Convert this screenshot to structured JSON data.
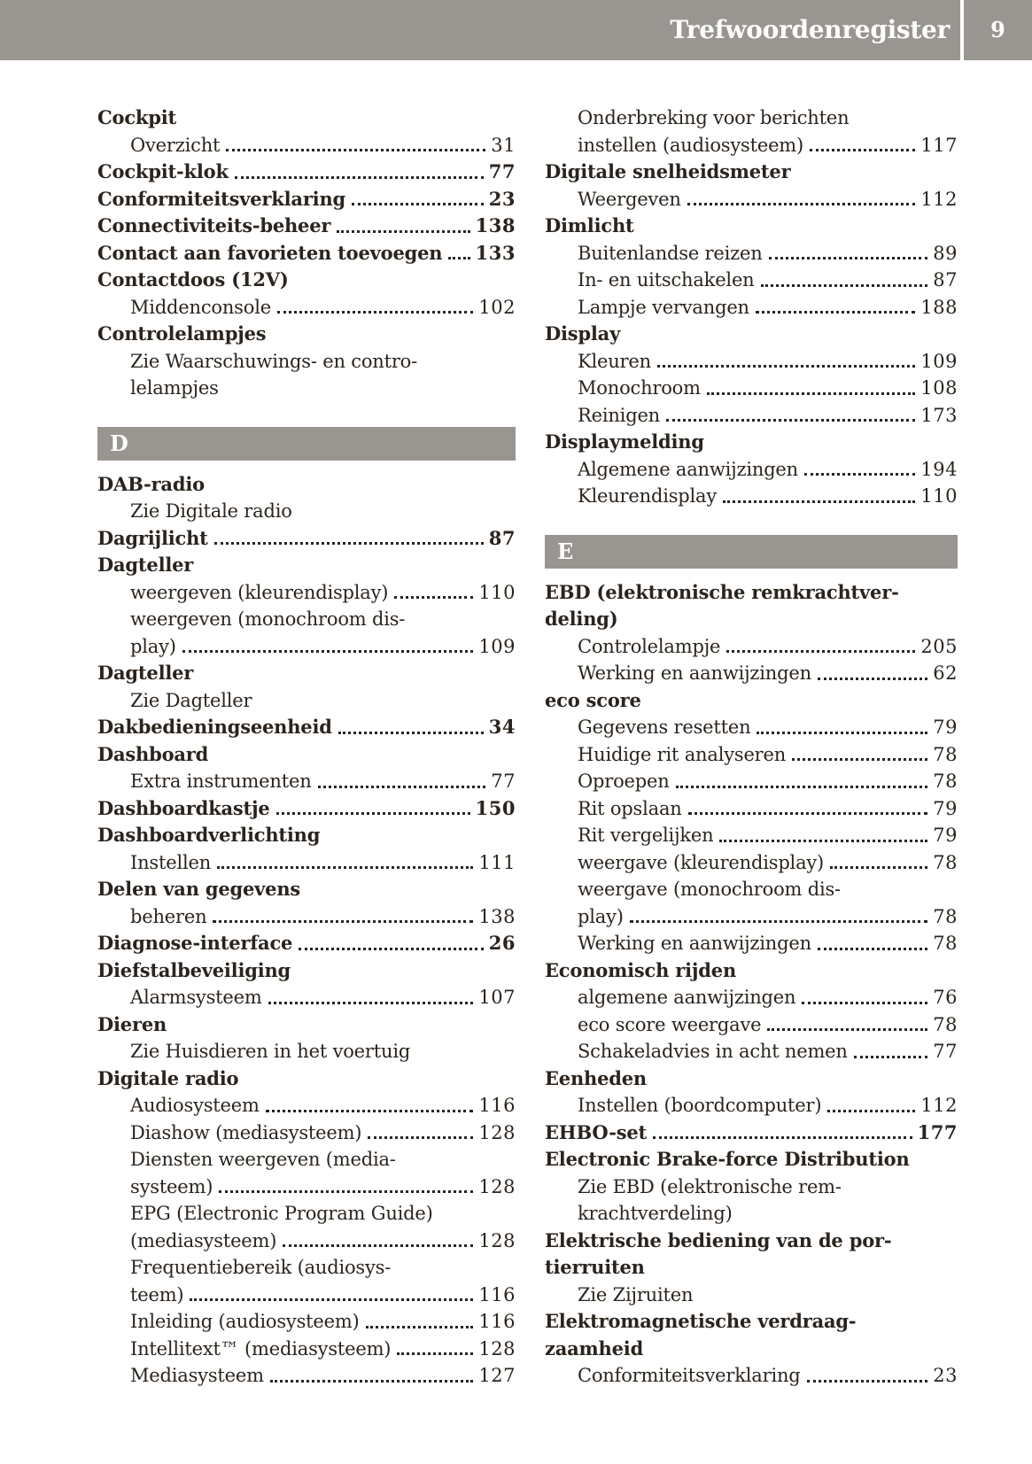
{
  "header": {
    "title": "Trefwoordenregister",
    "page_number": "9"
  },
  "colors": {
    "header_bar": "#999591",
    "section_bar": "#999591",
    "text": "#2b241e",
    "header_text": "#ffffff",
    "background": "#ffffff"
  },
  "index": {
    "columns": [
      {
        "rows": [
          {
            "s": "head",
            "t": "Cockpit",
            "p": ""
          },
          {
            "s": "sub",
            "t": "Overzicht",
            "p": "31"
          },
          {
            "s": "head",
            "t": "Cockpit-klok",
            "p": "77"
          },
          {
            "s": "head",
            "t": "Conformiteitsverklaring",
            "p": "23"
          },
          {
            "s": "head",
            "t": "Connectiviteits-beheer",
            "p": "138"
          },
          {
            "s": "head",
            "t": "Contact aan favorieten toevoegen",
            "p": "133"
          },
          {
            "s": "head",
            "t": "Contactdoos (12V)",
            "p": ""
          },
          {
            "s": "sub",
            "t": "Middenconsole",
            "p": "102"
          },
          {
            "s": "head",
            "t": "Controlelampjes",
            "p": ""
          },
          {
            "s": "sub",
            "t": "Zie Waarschuwings- en contro-",
            "p": ""
          },
          {
            "s": "sub",
            "t": "lelampjes",
            "p": ""
          },
          {
            "s": "bar",
            "t": "D"
          },
          {
            "s": "head",
            "t": "DAB-radio",
            "p": ""
          },
          {
            "s": "sub",
            "t": "Zie Digitale radio",
            "p": ""
          },
          {
            "s": "head",
            "t": "Dagrijlicht",
            "p": "87"
          },
          {
            "s": "head",
            "t": "Dagteller",
            "p": ""
          },
          {
            "s": "sub",
            "t": "weergeven (kleurendisplay)",
            "p": "110"
          },
          {
            "s": "sub",
            "t": "weergeven (monochroom dis-",
            "p": ""
          },
          {
            "s": "sub",
            "t": "play)",
            "p": "109"
          },
          {
            "s": "head",
            "t": "Dagteller",
            "p": ""
          },
          {
            "s": "sub",
            "t": "Zie Dagteller",
            "p": ""
          },
          {
            "s": "head",
            "t": "Dakbedieningseenheid",
            "p": "34"
          },
          {
            "s": "head",
            "t": "Dashboard",
            "p": ""
          },
          {
            "s": "sub",
            "t": "Extra instrumenten",
            "p": "77"
          },
          {
            "s": "head",
            "t": "Dashboardkastje",
            "p": "150"
          },
          {
            "s": "head",
            "t": "Dashboardverlichting",
            "p": ""
          },
          {
            "s": "sub",
            "t": "Instellen",
            "p": "111"
          },
          {
            "s": "head",
            "t": "Delen van gegevens",
            "p": ""
          },
          {
            "s": "sub",
            "t": "beheren",
            "p": "138"
          },
          {
            "s": "head",
            "t": "Diagnose-interface",
            "p": "26"
          },
          {
            "s": "head",
            "t": "Diefstalbeveiliging",
            "p": ""
          },
          {
            "s": "sub",
            "t": "Alarmsysteem",
            "p": "107"
          },
          {
            "s": "head",
            "t": "Dieren",
            "p": ""
          },
          {
            "s": "sub",
            "t": "Zie Huisdieren in het voertuig",
            "p": ""
          },
          {
            "s": "head",
            "t": "Digitale radio",
            "p": ""
          },
          {
            "s": "sub",
            "t": "Audiosysteem",
            "p": "116"
          },
          {
            "s": "sub",
            "t": "Diashow (mediasysteem)",
            "p": "128"
          },
          {
            "s": "sub",
            "t": "Diensten weergeven (media-",
            "p": ""
          },
          {
            "s": "sub",
            "t": "systeem)",
            "p": "128"
          },
          {
            "s": "sub",
            "t": "EPG (Electronic Program Guide)",
            "p": ""
          },
          {
            "s": "sub",
            "t": "(mediasysteem)",
            "p": "128"
          },
          {
            "s": "sub",
            "t": "Frequentiebereik (audiosys-",
            "p": ""
          },
          {
            "s": "sub",
            "t": "teem)",
            "p": "116"
          },
          {
            "s": "sub",
            "t": "Inleiding (audiosysteem)",
            "p": "116"
          },
          {
            "s": "sub",
            "t": "Intellitext™ (mediasysteem)",
            "p": "128"
          },
          {
            "s": "sub",
            "t": "Mediasysteem",
            "p": "127"
          }
        ]
      },
      {
        "rows": [
          {
            "s": "sub",
            "t": "Onderbreking voor berichten",
            "p": ""
          },
          {
            "s": "sub",
            "t": "instellen (audiosysteem)",
            "p": "117"
          },
          {
            "s": "head",
            "t": "Digitale snelheidsmeter",
            "p": ""
          },
          {
            "s": "sub",
            "t": "Weergeven",
            "p": "112"
          },
          {
            "s": "head",
            "t": "Dimlicht",
            "p": ""
          },
          {
            "s": "sub",
            "t": "Buitenlandse reizen",
            "p": "89"
          },
          {
            "s": "sub",
            "t": "In- en uitschakelen",
            "p": "87"
          },
          {
            "s": "sub",
            "t": "Lampje vervangen",
            "p": "188"
          },
          {
            "s": "head",
            "t": "Display",
            "p": ""
          },
          {
            "s": "sub",
            "t": "Kleuren",
            "p": "109"
          },
          {
            "s": "sub",
            "t": "Monochroom",
            "p": "108"
          },
          {
            "s": "sub",
            "t": "Reinigen",
            "p": "173"
          },
          {
            "s": "head",
            "t": "Displaymelding",
            "p": ""
          },
          {
            "s": "sub",
            "t": "Algemene aanwijzingen",
            "p": "194"
          },
          {
            "s": "sub",
            "t": "Kleurendisplay",
            "p": "110"
          },
          {
            "s": "bar",
            "t": "E"
          },
          {
            "s": "head",
            "t": "EBD (elektronische remkrachtver-",
            "p": ""
          },
          {
            "s": "head",
            "t": "deling)",
            "p": ""
          },
          {
            "s": "sub",
            "t": "Controlelampje",
            "p": "205"
          },
          {
            "s": "sub",
            "t": "Werking en aanwijzingen",
            "p": "62"
          },
          {
            "s": "head",
            "t": "eco score",
            "p": ""
          },
          {
            "s": "sub",
            "t": "Gegevens resetten",
            "p": "79"
          },
          {
            "s": "sub",
            "t": "Huidige rit analyseren",
            "p": "78"
          },
          {
            "s": "sub",
            "t": "Oproepen",
            "p": "78"
          },
          {
            "s": "sub",
            "t": "Rit opslaan",
            "p": "79"
          },
          {
            "s": "sub",
            "t": "Rit vergelijken",
            "p": "79"
          },
          {
            "s": "sub",
            "t": "weergave (kleurendisplay)",
            "p": "78"
          },
          {
            "s": "sub",
            "t": "weergave (monochroom dis-",
            "p": ""
          },
          {
            "s": "sub",
            "t": "play)",
            "p": "78"
          },
          {
            "s": "sub",
            "t": "Werking en aanwijzingen",
            "p": "78"
          },
          {
            "s": "head",
            "t": "Economisch rijden",
            "p": ""
          },
          {
            "s": "sub",
            "t": "algemene aanwijzingen",
            "p": "76"
          },
          {
            "s": "sub",
            "t": "eco score weergave",
            "p": "78"
          },
          {
            "s": "sub",
            "t": "Schakeladvies in acht nemen",
            "p": "77"
          },
          {
            "s": "head",
            "t": "Eenheden",
            "p": ""
          },
          {
            "s": "sub",
            "t": "Instellen (boordcomputer)",
            "p": "112"
          },
          {
            "s": "head",
            "t": "EHBO-set",
            "p": "177"
          },
          {
            "s": "head",
            "t": "Electronic Brake-force Distribution",
            "p": ""
          },
          {
            "s": "sub",
            "t": "Zie EBD (elektronische rem-",
            "p": ""
          },
          {
            "s": "sub",
            "t": "krachtverdeling)",
            "p": ""
          },
          {
            "s": "head",
            "t": "Elektrische bediening van de por-",
            "p": ""
          },
          {
            "s": "head",
            "t": "tierruiten",
            "p": ""
          },
          {
            "s": "sub",
            "t": "Zie Zijruiten",
            "p": ""
          },
          {
            "s": "head",
            "t": "Elektromagnetische verdraag-",
            "p": ""
          },
          {
            "s": "head",
            "t": "zaamheid",
            "p": ""
          },
          {
            "s": "sub",
            "t": "Conformiteitsverklaring",
            "p": "23"
          }
        ]
      }
    ]
  }
}
